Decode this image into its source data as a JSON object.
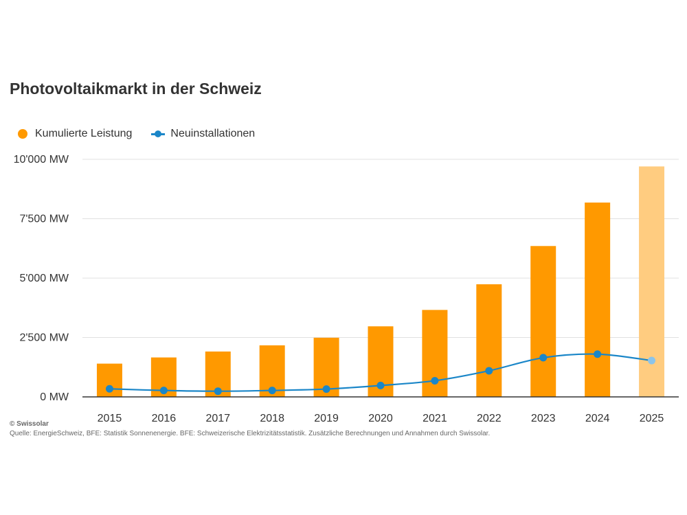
{
  "colors": {
    "bar": "#ff9900",
    "bar_estimate": "#ffcc80",
    "line": "#1a86c8",
    "point_estimate": "#8cc4ea",
    "grid": "#e0e0e0",
    "axis": "#333333"
  },
  "chart_data": {
    "type": "bar",
    "title": "Photovoltaikmarkt in der Schweiz",
    "categories": [
      "2015",
      "2016",
      "2017",
      "2018",
      "2019",
      "2020",
      "2021",
      "2022",
      "2023",
      "2024",
      "2025"
    ],
    "series": [
      {
        "name": "Kumulierte Leistung",
        "type": "bar",
        "values": [
          1400,
          1660,
          1910,
          2170,
          2490,
          2970,
          3660,
          4740,
          6350,
          8180,
          9700
        ],
        "estimated_from_index": 10
      },
      {
        "name": "Neuinstallationen",
        "type": "line",
        "values": [
          340,
          270,
          240,
          270,
          330,
          480,
          680,
          1100,
          1650,
          1800,
          1530
        ],
        "estimated_from_index": 10
      }
    ],
    "yticks": [
      "0 MW",
      "2'500 MW",
      "5'000 MW",
      "7'500 MW",
      "10'000 MW"
    ],
    "ylim": [
      0,
      10000
    ],
    "grid": true,
    "legend_position": "top-left"
  },
  "footer": {
    "credit": "© Swissolar",
    "source": "Quelle: EnergieSchweiz, BFE: Statistik Sonnenenergie. BFE: Schweizerische Elektrizitätsstatistik. Zusätzliche Berechnungen und Annahmen durch Swissolar."
  }
}
